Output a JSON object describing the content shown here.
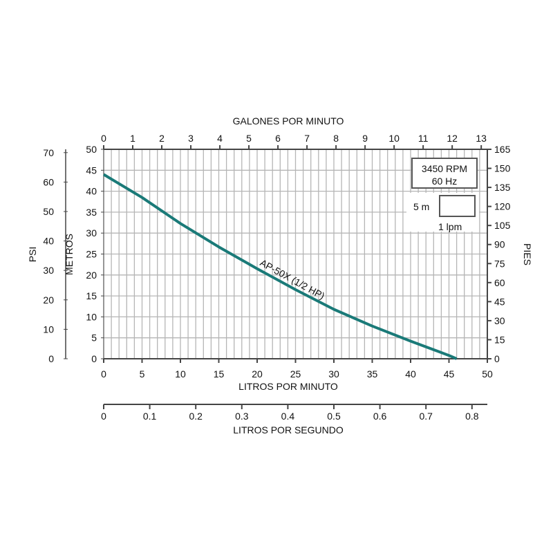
{
  "chart_data": {
    "type": "line",
    "title": "",
    "curve_label": "AP-50X (1/2 HP)",
    "curve_color": "#1a7a78",
    "xlabel": "LITROS POR MINUTO",
    "ylabel": "METROS",
    "xlim": [
      0,
      50
    ],
    "ylim": [
      0,
      50
    ],
    "xticks": [
      0,
      5,
      10,
      15,
      20,
      25,
      30,
      35,
      40,
      45,
      50
    ],
    "yticks": [
      0,
      5,
      10,
      15,
      20,
      25,
      30,
      35,
      40,
      45,
      50
    ],
    "top_axis": {
      "label": "GALONES POR MINUTO",
      "ticks": [
        0,
        1,
        2,
        3,
        4,
        5,
        6,
        7,
        8,
        9,
        10,
        11,
        12,
        13
      ]
    },
    "left_axis": {
      "label": "PSI",
      "ticks": [
        0,
        10,
        20,
        30,
        40,
        50,
        60,
        70
      ]
    },
    "right_axis": {
      "label": "PIES",
      "ticks": [
        0,
        15,
        30,
        45,
        60,
        75,
        90,
        105,
        120,
        135,
        150,
        165
      ]
    },
    "bottom_axis2": {
      "label": "LITROS POR SEGUNDO",
      "ticks": [
        "0",
        "0.1",
        "0.2",
        "0.3",
        "0.4",
        "0.5",
        "0.6",
        "0.7",
        "0.8"
      ]
    },
    "grid": true,
    "info_box": {
      "rpm": "3450 RPM",
      "hz": "60 Hz"
    },
    "scale_box": {
      "y_unit": "5 m",
      "x_unit": "1 lpm"
    },
    "series": [
      {
        "name": "AP-50X (1/2 HP)",
        "x": [
          0,
          5,
          10,
          15,
          20,
          25,
          30,
          35,
          40,
          45,
          46
        ],
        "y": [
          44,
          38.5,
          32.3,
          26.7,
          21.5,
          16.5,
          11.8,
          7.8,
          4.2,
          0.8,
          0
        ]
      }
    ]
  }
}
